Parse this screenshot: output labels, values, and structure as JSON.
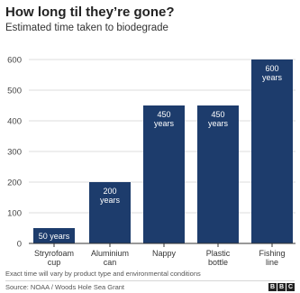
{
  "chart_data": {
    "type": "bar",
    "title": "How long til they’re gone?",
    "subtitle": "Estimated time taken to biodegrade",
    "categories": [
      [
        "Stryrofoam",
        "cup"
      ],
      [
        "Aluminium",
        "can"
      ],
      [
        "Nappy"
      ],
      [
        "Plastic",
        "bottle"
      ],
      [
        "Fishing",
        "line"
      ]
    ],
    "values": [
      50,
      200,
      450,
      450,
      600
    ],
    "data_labels": [
      [
        "50 years"
      ],
      [
        "200",
        "years"
      ],
      [
        "450",
        "years"
      ],
      [
        "450",
        "years"
      ],
      [
        "600",
        "years"
      ]
    ],
    "ylim": [
      0,
      600
    ],
    "yticks": [
      0,
      100,
      200,
      300,
      400,
      500,
      600
    ],
    "grid": true,
    "bar_color": "#1d3c6c",
    "label_color_inside": "#ffffff",
    "label_color_outside": "#ffffff",
    "note": "Exact time will vary by product type and environmental conditions",
    "source": "Source: NOAA / Woods Hole Sea Grant",
    "logo": [
      "B",
      "B",
      "C"
    ]
  }
}
